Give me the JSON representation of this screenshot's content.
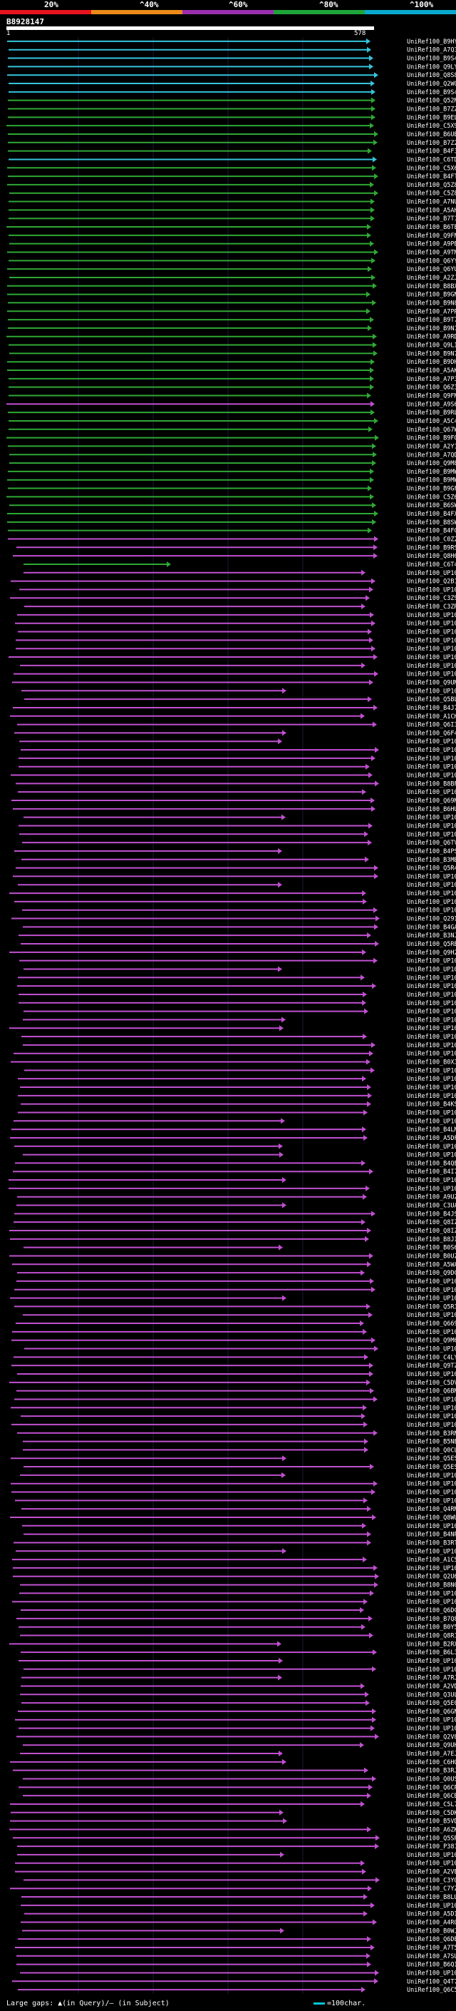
{
  "scale": {
    "labels": [
      "20%",
      "^40%",
      "^60%",
      "^80%",
      "^100%"
    ],
    "colors": [
      "#e8141e",
      "#ee8a18",
      "#9b2fae",
      "#1ea53a",
      "#0aa9d0"
    ]
  },
  "query": {
    "name": "B8928147",
    "start": "1",
    "end": "578"
  },
  "legend": {
    "gaps": "Large gaps: ▲(in Query)/– (in Subject)",
    "scale": "=100char."
  },
  "hit_colors": {
    "cyan": "#35c4dc",
    "green": "#2fa834",
    "magenta": "#c050d0"
  },
  "hits": [
    {
      "id": "UniRef100_B9HY15",
      "identity": "cyan"
    },
    {
      "id": "UniRef100_A7Q3S1",
      "identity": "cyan"
    },
    {
      "id": "UniRef100_B9S4A3",
      "identity": "cyan"
    },
    {
      "id": "UniRef100_Q9LYM2",
      "identity": "cyan"
    },
    {
      "id": "UniRef100_Q8S8E1",
      "identity": "cyan"
    },
    {
      "id": "UniRef100_Q2WQJ3",
      "identity": "cyan"
    },
    {
      "id": "UniRef100_B9S4A2",
      "identity": "cyan"
    },
    {
      "id": "UniRef100_Q52MB0",
      "identity": "green"
    },
    {
      "id": "UniRef100_B7ZZ16",
      "identity": "green"
    },
    {
      "id": "UniRef100_B9EL05",
      "identity": "green"
    },
    {
      "id": "UniRef100_C5X9W1",
      "identity": "green"
    },
    {
      "id": "UniRef100_B6UB15",
      "identity": "green"
    },
    {
      "id": "UniRef100_B7Z2I7",
      "identity": "green"
    },
    {
      "id": "UniRef100_B4F3F4",
      "identity": "green"
    },
    {
      "id": "UniRef100_C6TD24",
      "identity": "cyan"
    },
    {
      "id": "UniRef100_C5X643",
      "identity": "green"
    },
    {
      "id": "UniRef100_B4FTP3",
      "identity": "green"
    },
    {
      "id": "UniRef100_Q5Z8W2",
      "identity": "green"
    },
    {
      "id": "UniRef100_C5Z8K2",
      "identity": "green"
    },
    {
      "id": "UniRef100_A7NUD1",
      "identity": "green"
    },
    {
      "id": "UniRef100_A5AH19",
      "identity": "green"
    },
    {
      "id": "UniRef100_B7T1N5",
      "identity": "green"
    },
    {
      "id": "UniRef100_B6TE03",
      "identity": "green"
    },
    {
      "id": "UniRef100_Q9FN28",
      "identity": "green"
    },
    {
      "id": "UniRef100_A9PBH7",
      "identity": "green"
    },
    {
      "id": "UniRef100_A9TM90",
      "identity": "green"
    },
    {
      "id": "UniRef100_Q6YYL0",
      "identity": "green"
    },
    {
      "id": "UniRef100_Q6YUT5",
      "identity": "green"
    },
    {
      "id": "UniRef100_A2ZJW3",
      "identity": "green"
    },
    {
      "id": "UniRef100_B8BXG3",
      "identity": "green"
    },
    {
      "id": "UniRef100_B9GNL1",
      "identity": "green"
    },
    {
      "id": "UniRef100_B9N8L9",
      "identity": "green"
    },
    {
      "id": "UniRef100_A7PRH1",
      "identity": "green"
    },
    {
      "id": "UniRef100_B9T738",
      "identity": "green"
    },
    {
      "id": "UniRef100_B9N1V7",
      "identity": "green"
    },
    {
      "id": "UniRef100_A9RDX9",
      "identity": "green"
    },
    {
      "id": "UniRef100_Q9LI61",
      "identity": "green"
    },
    {
      "id": "UniRef100_B9N7P5",
      "identity": "green"
    },
    {
      "id": "UniRef100_B9DH07",
      "identity": "green"
    },
    {
      "id": "UniRef100_A5AKT3",
      "identity": "green"
    },
    {
      "id": "UniRef100_A7P3N7",
      "identity": "green"
    },
    {
      "id": "UniRef100_Q6Z336",
      "identity": "green"
    },
    {
      "id": "UniRef100_Q9FMC0",
      "identity": "green"
    },
    {
      "id": "UniRef100_A9S6C8",
      "identity": "magenta"
    },
    {
      "id": "UniRef100_B9RLF1",
      "identity": "green"
    },
    {
      "id": "UniRef100_A5C4H1",
      "identity": "green"
    },
    {
      "id": "UniRef100_Q67WP1",
      "identity": "green"
    },
    {
      "id": "UniRef100_B9FQ05",
      "identity": "green"
    },
    {
      "id": "UniRef100_A2Y1E2",
      "identity": "green"
    },
    {
      "id": "UniRef100_A7QDX6",
      "identity": "green"
    },
    {
      "id": "UniRef100_Q9M8L9",
      "identity": "green"
    },
    {
      "id": "UniRef100_B9MWM0",
      "identity": "green"
    },
    {
      "id": "UniRef100_B9MWL9",
      "identity": "green"
    },
    {
      "id": "UniRef100_B9GFH7",
      "identity": "green"
    },
    {
      "id": "UniRef100_C5Z6Q3",
      "identity": "green"
    },
    {
      "id": "UniRef100_B6SWR7",
      "identity": "green"
    },
    {
      "id": "UniRef100_B4FXT0",
      "identity": "green"
    },
    {
      "id": "UniRef100_B8SWV0",
      "identity": "green"
    },
    {
      "id": "UniRef100_B4FGU0",
      "identity": "green"
    },
    {
      "id": "UniRef100_C0Z2P0",
      "identity": "magenta"
    },
    {
      "id": "UniRef100_B9RSV0",
      "identity": "magenta"
    },
    {
      "id": "UniRef100_Q8H6S4",
      "identity": "magenta"
    },
    {
      "id": "UniRef100_C6T4M3",
      "identity": "green"
    },
    {
      "id": "UniRef100_UP1000..",
      "identity": "magenta"
    },
    {
      "id": "UniRef100_Q2B1N7",
      "identity": "magenta"
    },
    {
      "id": "UniRef100_UP1000..",
      "identity": "magenta"
    },
    {
      "id": "UniRef100_C3Z9N1",
      "identity": "magenta"
    },
    {
      "id": "UniRef100_C3ZRS1",
      "identity": "magenta"
    },
    {
      "id": "UniRef100_UP1000..",
      "identity": "magenta"
    },
    {
      "id": "UniRef100_UP1000..",
      "identity": "magenta"
    },
    {
      "id": "UniRef100_UP1000..",
      "identity": "magenta"
    },
    {
      "id": "UniRef100_UP1000..",
      "identity": "magenta"
    },
    {
      "id": "UniRef100_UP1000..",
      "identity": "magenta"
    },
    {
      "id": "UniRef100_UP1000..",
      "identity": "magenta"
    },
    {
      "id": "UniRef100_UP1000..",
      "identity": "magenta"
    },
    {
      "id": "UniRef100_UP1000..",
      "identity": "magenta"
    },
    {
      "id": "UniRef100_Q9UM15",
      "identity": "magenta"
    },
    {
      "id": "UniRef100_UP1000..",
      "identity": "magenta"
    },
    {
      "id": "UniRef100_Q5BL66",
      "identity": "magenta"
    },
    {
      "id": "UniRef100_B4J7H3",
      "identity": "magenta"
    },
    {
      "id": "UniRef100_A1CH08",
      "identity": "magenta"
    },
    {
      "id": "UniRef100_Q6I3M9",
      "identity": "magenta"
    },
    {
      "id": "UniRef100_Q6F4K8",
      "identity": "magenta"
    },
    {
      "id": "UniRef100_UP1000..",
      "identity": "magenta"
    },
    {
      "id": "UniRef100_UP1000..",
      "identity": "magenta"
    },
    {
      "id": "UniRef100_UP1000..",
      "identity": "magenta"
    },
    {
      "id": "UniRef100_UP1000..",
      "identity": "magenta"
    },
    {
      "id": "UniRef100_UP1000..",
      "identity": "magenta"
    },
    {
      "id": "UniRef100_B8BFD1",
      "identity": "magenta"
    },
    {
      "id": "UniRef100_UP1000..",
      "identity": "magenta"
    },
    {
      "id": "UniRef100_Q69MI3",
      "identity": "magenta"
    },
    {
      "id": "UniRef100_B6HU47",
      "identity": "magenta"
    },
    {
      "id": "UniRef100_UP1000..",
      "identity": "magenta"
    },
    {
      "id": "UniRef100_UP1000..",
      "identity": "magenta"
    },
    {
      "id": "UniRef100_UP1000..",
      "identity": "magenta"
    },
    {
      "id": "UniRef100_Q6TV21",
      "identity": "magenta"
    },
    {
      "id": "UniRef100_B4PSG3",
      "identity": "magenta"
    },
    {
      "id": "UniRef100_B3MBD3",
      "identity": "magenta"
    },
    {
      "id": "UniRef100_Q5R443",
      "identity": "magenta"
    },
    {
      "id": "UniRef100_UP1000..",
      "identity": "magenta"
    },
    {
      "id": "UniRef100_UP1000..",
      "identity": "magenta"
    },
    {
      "id": "UniRef100_UP1000..",
      "identity": "magenta"
    },
    {
      "id": "UniRef100_UP1000..",
      "identity": "magenta"
    },
    {
      "id": "UniRef100_UP1000..",
      "identity": "magenta"
    },
    {
      "id": "UniRef100_Q29IU6",
      "identity": "magenta"
    },
    {
      "id": "UniRef100_B4GA90",
      "identity": "magenta"
    },
    {
      "id": "UniRef100_B3NJL5",
      "identity": "magenta"
    },
    {
      "id": "UniRef100_Q5RE87",
      "identity": "magenta"
    },
    {
      "id": "UniRef100_Q9H2H9",
      "identity": "magenta"
    },
    {
      "id": "UniRef100_UP1000..",
      "identity": "magenta"
    },
    {
      "id": "UniRef100_UP1000..",
      "identity": "magenta"
    },
    {
      "id": "UniRef100_UP1000..",
      "identity": "magenta"
    },
    {
      "id": "UniRef100_UP1000..",
      "identity": "magenta"
    },
    {
      "id": "UniRef100_UP1000..",
      "identity": "magenta"
    },
    {
      "id": "UniRef100_UP1000..",
      "identity": "magenta"
    },
    {
      "id": "UniRef100_UP1000..",
      "identity": "magenta"
    },
    {
      "id": "UniRef100_UP1000..",
      "identity": "magenta"
    },
    {
      "id": "UniRef100_UP1000..",
      "identity": "magenta"
    },
    {
      "id": "UniRef100_UP1000..",
      "identity": "magenta"
    },
    {
      "id": "UniRef100_UP1000..",
      "identity": "magenta"
    },
    {
      "id": "UniRef100_UP1000..",
      "identity": "magenta"
    },
    {
      "id": "UniRef100_B0X3P7",
      "identity": "magenta"
    },
    {
      "id": "UniRef100_UP1000..",
      "identity": "magenta"
    },
    {
      "id": "UniRef100_UP1000..",
      "identity": "magenta"
    },
    {
      "id": "UniRef100_UP1000..",
      "identity": "magenta"
    },
    {
      "id": "UniRef100_UP1000..",
      "identity": "magenta"
    },
    {
      "id": "UniRef100_B4KSI8",
      "identity": "magenta"
    },
    {
      "id": "UniRef100_UP1000..",
      "identity": "magenta"
    },
    {
      "id": "UniRef100_UP1000..",
      "identity": "magenta"
    },
    {
      "id": "UniRef100_B4LMF5",
      "identity": "magenta"
    },
    {
      "id": "UniRef100_A5DFF3",
      "identity": "magenta"
    },
    {
      "id": "UniRef100_UP1000..",
      "identity": "magenta"
    },
    {
      "id": "UniRef100_UP1000..",
      "identity": "magenta"
    },
    {
      "id": "UniRef100_B4QE41",
      "identity": "magenta"
    },
    {
      "id": "UniRef100_B4I7R2",
      "identity": "magenta"
    },
    {
      "id": "UniRef100_UP1000..",
      "identity": "magenta"
    },
    {
      "id": "UniRef100_UP1000..",
      "identity": "magenta"
    },
    {
      "id": "UniRef100_A9UZD9",
      "identity": "magenta"
    },
    {
      "id": "UniRef100_C3UAN6",
      "identity": "magenta"
    },
    {
      "id": "UniRef100_B4JSL6",
      "identity": "magenta"
    },
    {
      "id": "UniRef100_Q8IZM9-2",
      "identity": "magenta"
    },
    {
      "id": "UniRef100_Q8IZM9",
      "identity": "magenta"
    },
    {
      "id": "UniRef100_B8JI65",
      "identity": "magenta"
    },
    {
      "id": "UniRef100_B0S6G0",
      "identity": "magenta"
    },
    {
      "id": "UniRef100_B0UZM2",
      "identity": "magenta"
    },
    {
      "id": "UniRef100_A5WAU0",
      "identity": "magenta"
    },
    {
      "id": "UniRef100_Q9DCP2",
      "identity": "magenta"
    },
    {
      "id": "UniRef100_UP1000..",
      "identity": "magenta"
    },
    {
      "id": "UniRef100_UP1000..",
      "identity": "magenta"
    },
    {
      "id": "UniRef100_UP1000..",
      "identity": "magenta"
    },
    {
      "id": "UniRef100_Q5R3G8",
      "identity": "magenta"
    },
    {
      "id": "UniRef100_UP1000..",
      "identity": "magenta"
    },
    {
      "id": "UniRef100_Q66916",
      "identity": "magenta"
    },
    {
      "id": "UniRef100_UP1000..",
      "identity": "magenta"
    },
    {
      "id": "UniRef100_Q9M624",
      "identity": "magenta"
    },
    {
      "id": "UniRef100_UP1000..",
      "identity": "magenta"
    },
    {
      "id": "UniRef100_C4LY56",
      "identity": "magenta"
    },
    {
      "id": "UniRef100_Q9TZN8",
      "identity": "magenta"
    },
    {
      "id": "UniRef100_UP1000..",
      "identity": "magenta"
    },
    {
      "id": "UniRef100_C5DVV1",
      "identity": "magenta"
    },
    {
      "id": "UniRef100_Q6BM83",
      "identity": "magenta"
    },
    {
      "id": "UniRef100_UP1000..",
      "identity": "magenta"
    },
    {
      "id": "UniRef100_UP1000..",
      "identity": "magenta"
    },
    {
      "id": "UniRef100_UP1000..",
      "identity": "magenta"
    },
    {
      "id": "UniRef100_UP1000..",
      "identity": "magenta"
    },
    {
      "id": "UniRef100_B3RN24",
      "identity": "magenta"
    },
    {
      "id": "UniRef100_B5NEC0",
      "identity": "magenta"
    },
    {
      "id": "UniRef100_Q0CLA0",
      "identity": "magenta"
    },
    {
      "id": "UniRef100_Q5ES59-2",
      "identity": "magenta"
    },
    {
      "id": "UniRef100_Q5ES59",
      "identity": "magenta"
    },
    {
      "id": "UniRef100_UP1000..",
      "identity": "magenta"
    },
    {
      "id": "UniRef100_UP1000..",
      "identity": "magenta"
    },
    {
      "id": "UniRef100_UP1000..",
      "identity": "magenta"
    },
    {
      "id": "UniRef100_UP1000..",
      "identity": "magenta"
    },
    {
      "id": "UniRef100_Q4RM41",
      "identity": "magenta"
    },
    {
      "id": "UniRef100_Q8WUX1",
      "identity": "magenta"
    },
    {
      "id": "UniRef100_UP1000..",
      "identity": "magenta"
    },
    {
      "id": "UniRef100_B4NPI0",
      "identity": "magenta"
    },
    {
      "id": "UniRef100_B3RT77",
      "identity": "magenta"
    },
    {
      "id": "UniRef100_UP1000..",
      "identity": "magenta"
    },
    {
      "id": "UniRef100_A1CSS9",
      "identity": "magenta"
    },
    {
      "id": "UniRef100_UP1000..",
      "identity": "magenta"
    },
    {
      "id": "UniRef100_Q2U6D0",
      "identity": "magenta"
    },
    {
      "id": "UniRef100_B8N0W0",
      "identity": "magenta"
    },
    {
      "id": "UniRef100_UP1000..",
      "identity": "magenta"
    },
    {
      "id": "UniRef100_UP1000..",
      "identity": "magenta"
    },
    {
      "id": "UniRef100_Q6DC25",
      "identity": "magenta"
    },
    {
      "id": "UniRef100_B7Q8R3",
      "identity": "magenta"
    },
    {
      "id": "UniRef100_B0Y5P0",
      "identity": "magenta"
    },
    {
      "id": "UniRef100_Q8R159",
      "identity": "magenta"
    },
    {
      "id": "UniRef100_B2RXN5",
      "identity": "magenta"
    },
    {
      "id": "UniRef100_B6L3N2",
      "identity": "magenta"
    },
    {
      "id": "UniRef100_UP1000..",
      "identity": "magenta"
    },
    {
      "id": "UniRef100_UP1000..",
      "identity": "magenta"
    },
    {
      "id": "UniRef100_A7RJI0",
      "identity": "magenta"
    },
    {
      "id": "UniRef100_A2VDW5",
      "identity": "magenta"
    },
    {
      "id": "UniRef100_Q3ULJ0",
      "identity": "magenta"
    },
    {
      "id": "UniRef100_Q5E025",
      "identity": "magenta"
    },
    {
      "id": "UniRef100_Q6GNV4",
      "identity": "magenta"
    },
    {
      "id": "UniRef100_UP1000..",
      "identity": "magenta"
    },
    {
      "id": "UniRef100_UP1000..",
      "identity": "magenta"
    },
    {
      "id": "UniRef100_Q2V8R1",
      "identity": "magenta"
    },
    {
      "id": "UniRef100_Q9UHE5",
      "identity": "magenta"
    },
    {
      "id": "UniRef100_A7EJU5",
      "identity": "magenta"
    },
    {
      "id": "UniRef100_C6HQD3",
      "identity": "magenta"
    },
    {
      "id": "UniRef100_B3RJI6",
      "identity": "magenta"
    },
    {
      "id": "UniRef100_Q0USJ2",
      "identity": "magenta"
    },
    {
      "id": "UniRef100_Q6CP86",
      "identity": "magenta"
    },
    {
      "id": "UniRef100_Q6CB83",
      "identity": "magenta"
    },
    {
      "id": "UniRef100_C5L7L6",
      "identity": "magenta"
    },
    {
      "id": "UniRef100_C5DKT4",
      "identity": "magenta"
    },
    {
      "id": "UniRef100_B5VDD2",
      "identity": "magenta"
    },
    {
      "id": "UniRef100_A6ZKL4",
      "identity": "magenta"
    },
    {
      "id": "UniRef100_Q5SPB1",
      "identity": "magenta"
    },
    {
      "id": "UniRef100_P38176",
      "identity": "magenta"
    },
    {
      "id": "UniRef100_UP1000..",
      "identity": "magenta"
    },
    {
      "id": "UniRef100_UP1000..",
      "identity": "magenta"
    },
    {
      "id": "UniRef100_A2VE31",
      "identity": "magenta"
    },
    {
      "id": "UniRef100_C3YQ05",
      "identity": "magenta"
    },
    {
      "id": "UniRef100_C7YZL2",
      "identity": "magenta"
    },
    {
      "id": "UniRef100_B8LU13",
      "identity": "magenta"
    },
    {
      "id": "UniRef100_UP1000..",
      "identity": "magenta"
    },
    {
      "id": "UniRef100_A5DI89",
      "identity": "magenta"
    },
    {
      "id": "UniRef100_A4RQZ7",
      "identity": "magenta"
    },
    {
      "id": "UniRef100_B0WJ13",
      "identity": "magenta"
    },
    {
      "id": "UniRef100_Q6DEL1",
      "identity": "magenta"
    },
    {
      "id": "UniRef100_A7T5H1",
      "identity": "magenta"
    },
    {
      "id": "UniRef100_A7SUS1",
      "identity": "magenta"
    },
    {
      "id": "UniRef100_B6QIM7",
      "identity": "magenta"
    },
    {
      "id": "UniRef100_UP1000..",
      "identity": "magenta"
    },
    {
      "id": "UniRef100_Q4T7B3",
      "identity": "magenta"
    },
    {
      "id": "UniRef100_Q6C5B3",
      "identity": "magenta"
    }
  ]
}
